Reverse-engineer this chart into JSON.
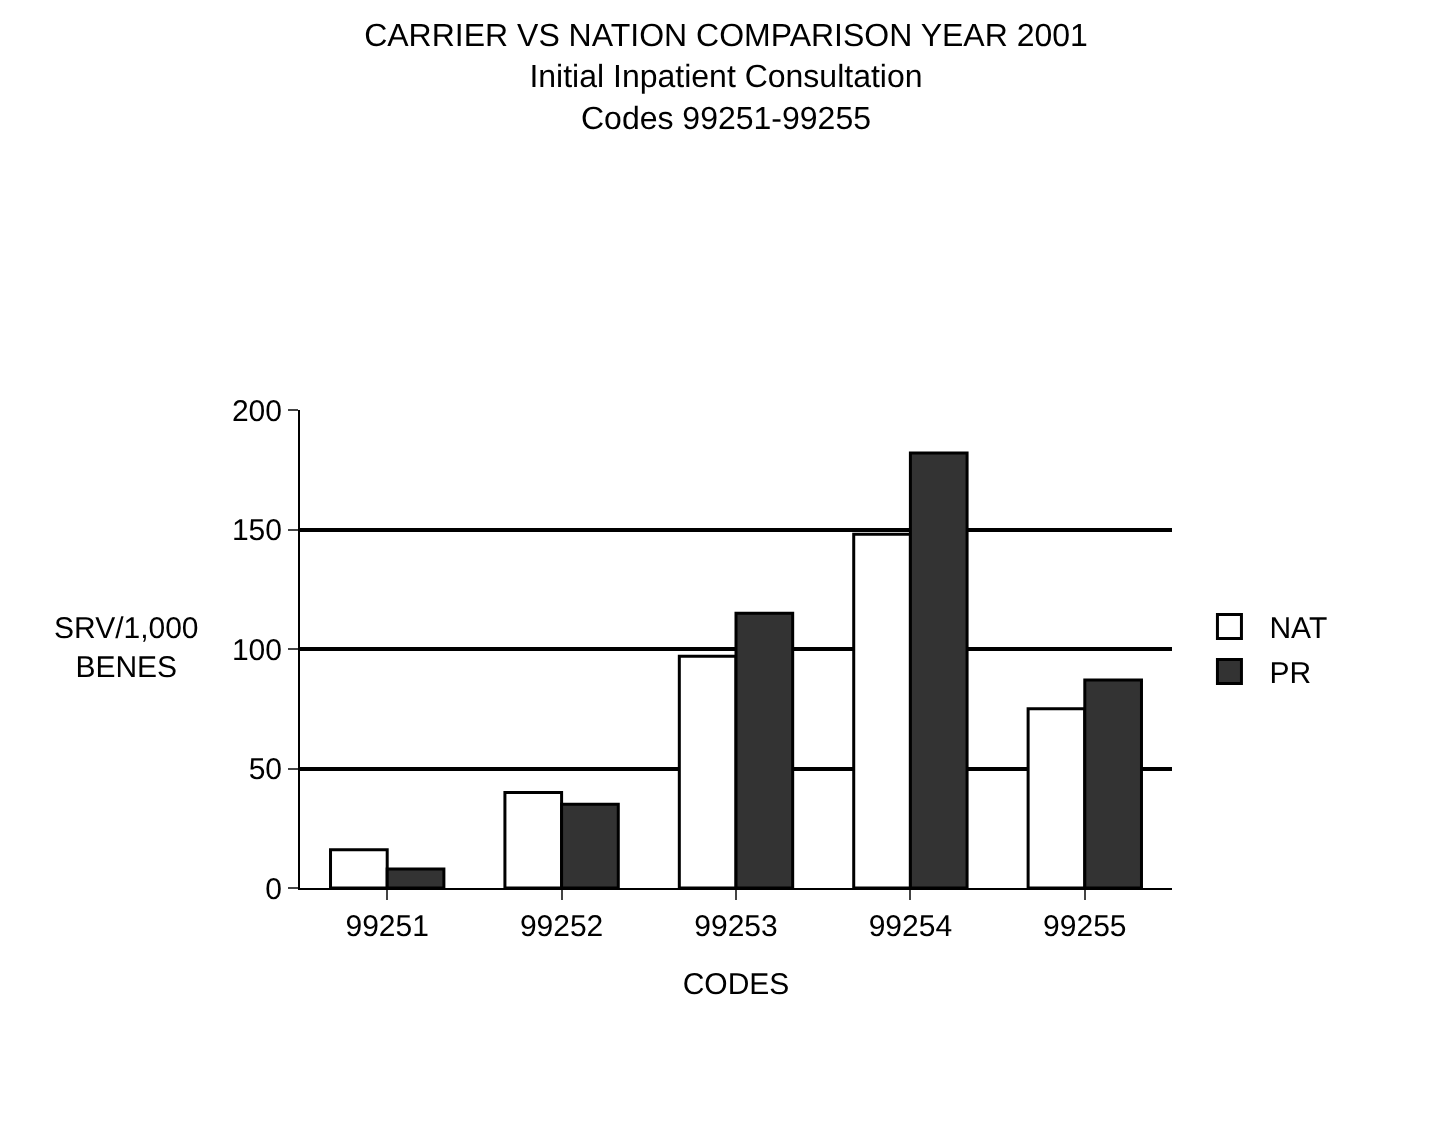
{
  "chart_data": {
    "type": "bar",
    "title": "CARRIER VS NATION COMPARISON YEAR 2001",
    "subtitle": "Initial Inpatient Consultation\nCodes 99251-99255",
    "xlabel": "CODES",
    "ylabel": "SRV/1,000\nBENES",
    "categories": [
      "99251",
      "99252",
      "99253",
      "99254",
      "99255"
    ],
    "series": [
      {
        "name": "NAT",
        "color": "#ffffff",
        "values": [
          16,
          40,
          97,
          148,
          75
        ]
      },
      {
        "name": "PR",
        "color": "#333333",
        "values": [
          8,
          35,
          115,
          182,
          87
        ]
      }
    ],
    "ylim": [
      0,
      200
    ],
    "yticks": [
      0,
      50,
      100,
      150,
      200
    ],
    "grid": "y",
    "legend": "right"
  }
}
